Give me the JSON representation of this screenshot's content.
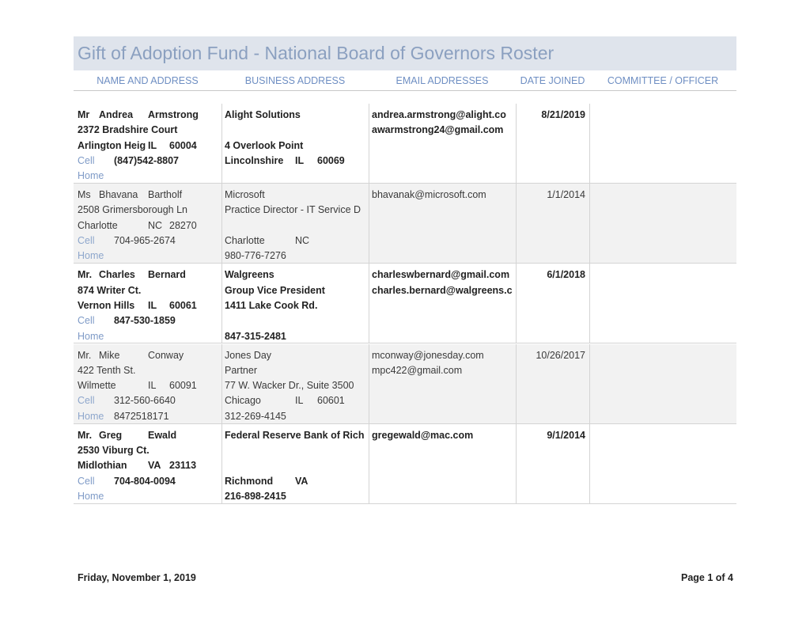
{
  "header": {
    "title": "Gift of Adoption Fund - National Board of Governors Roster",
    "columns": [
      "NAME AND ADDRESS",
      "BUSINESS ADDRESS",
      "EMAIL ADDRESSES",
      "DATE JOINED",
      "COMMITTEE / OFFICER"
    ]
  },
  "table": {
    "rows": [
      {
        "name": [
          "Mr",
          "Andrea",
          "Armstrong"
        ],
        "address": "2372 Bradshire Court",
        "city": [
          "Arlington Heig",
          "IL",
          "60004"
        ],
        "cell": [
          "Cell",
          "(847)542-8807"
        ],
        "home": [
          "Home"
        ],
        "business": {
          "company": "Alight Solutions",
          "street": "4 Overlook Point",
          "city": [
            "Lincolnshire",
            "IL",
            "60069"
          ]
        },
        "emails": [
          "andrea.armstrong@alight.co",
          "awarmstrong24@gmail.com"
        ],
        "date": "8/21/2019"
      },
      {
        "name": [
          "Ms",
          "Bhavana",
          "Bartholf"
        ],
        "address": "2508 Grimersborough Ln",
        "city": [
          "Charlotte",
          "NC",
          "28270"
        ],
        "cell": [
          "Cell",
          "704-965-2674"
        ],
        "home": [
          "Home"
        ],
        "business": {
          "company": "Microsoft",
          "title": "Practice Director - IT Service D",
          "city": [
            "Charlotte",
            "NC"
          ],
          "phone": "980-776-7276"
        },
        "emails": [
          "bhavanak@microsoft.com"
        ],
        "date": "1/1/2014"
      },
      {
        "name": [
          "Mr.",
          "Charles",
          "Bernard"
        ],
        "address": "874 Writer Ct.",
        "city": [
          "Vernon Hills",
          "IL",
          "60061"
        ],
        "cell": [
          "Cell",
          "847-530-1859"
        ],
        "home": [
          "Home"
        ],
        "business": {
          "company": "Walgreens",
          "title": "Group Vice President",
          "street": "1411 Lake Cook Rd.",
          "phone": "847-315-2481"
        },
        "emails": [
          "charleswbernard@gmail.com",
          "charles.bernard@walgreens.c"
        ],
        "date": "6/1/2018"
      },
      {
        "name": [
          "Mr.",
          "Mike",
          "Conway"
        ],
        "address": "422 Tenth St.",
        "city": [
          "Wilmette",
          "IL",
          "60091"
        ],
        "cell": [
          "Cell",
          "312-560-6640"
        ],
        "home": [
          "Home",
          "8472518171"
        ],
        "business": {
          "company": "Jones Day",
          "title": "Partner",
          "street": "77 W. Wacker Dr., Suite 3500",
          "city": [
            "Chicago",
            "IL",
            "60601"
          ],
          "phone": "312-269-4145"
        },
        "emails": [
          "mconway@jonesday.com",
          "mpc422@gmail.com"
        ],
        "date": "10/26/2017"
      },
      {
        "name": [
          "Mr.",
          "Greg",
          "Ewald"
        ],
        "address": "2530 Viburg Ct.",
        "city": [
          "Midlothian",
          "VA",
          "23113"
        ],
        "cell": [
          "Cell",
          "704-804-0094"
        ],
        "home": [
          "Home"
        ],
        "business": {
          "company": "Federal Reserve Bank of Rich",
          "city": [
            "Richmond",
            "VA"
          ],
          "phone": "216-898-2415"
        },
        "emails": [
          "gregewald@mac.com"
        ],
        "date": "9/1/2014"
      }
    ]
  },
  "footer": {
    "date": "Friday, November 1, 2019",
    "page": "Page 1 of 4"
  }
}
